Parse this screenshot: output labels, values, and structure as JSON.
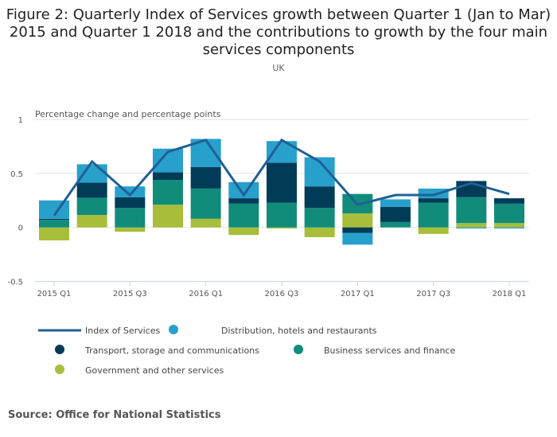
{
  "chart_data": {
    "type": "bar",
    "stacked": true,
    "title": "Figure 2: Quarterly Index of Services growth between Quarter 1 (Jan to Mar) 2015 and Quarter 1 2018 and the contributions to growth by the four main services components",
    "subtitle": "UK",
    "ylabel": "Percentage change and percentage points",
    "ylim": [
      -0.5,
      1
    ],
    "yticks": [
      "1",
      "0.5",
      "0",
      "-0.5"
    ],
    "ytick_values": [
      1,
      0.5,
      0,
      -0.5
    ],
    "grid": true,
    "legend_position": "bottom",
    "categories": [
      "2015 Q1",
      "2015 Q2",
      "2015 Q3",
      "2015 Q4",
      "2016 Q1",
      "2016 Q2",
      "2016 Q3",
      "2016 Q4",
      "2017 Q1",
      "2017 Q2",
      "2017 Q3",
      "2017 Q4",
      "2018 Q1"
    ],
    "xtick_labels": [
      "2015 Q1",
      "",
      "2015 Q3",
      "",
      "2016 Q1",
      "",
      "2016 Q3",
      "",
      "2017 Q1",
      "",
      "2017 Q3",
      "",
      "2018 Q1"
    ],
    "series": [
      {
        "name": "Government and other services",
        "kind": "bar",
        "color": "#a8bd3a",
        "values": [
          -0.12,
          0.115,
          -0.04,
          0.21,
          0.08,
          -0.07,
          -0.01,
          -0.09,
          0.13,
          0.0,
          -0.06,
          0.04,
          0.04
        ]
      },
      {
        "name": "Business services and finance",
        "kind": "bar",
        "color": "#118c7b",
        "values": [
          0.07,
          0.16,
          0.18,
          0.23,
          0.28,
          0.22,
          0.23,
          0.18,
          0.18,
          0.05,
          0.23,
          0.24,
          0.18
        ]
      },
      {
        "name": "Transport, storage and communications",
        "kind": "bar",
        "color": "#003c57",
        "values": [
          0.01,
          0.14,
          0.1,
          0.07,
          0.2,
          0.05,
          0.37,
          0.2,
          -0.05,
          0.14,
          0.04,
          0.15,
          0.05
        ]
      },
      {
        "name": "Distribution, hotels and restaurants",
        "kind": "bar",
        "color": "#27a0cc",
        "values": [
          0.17,
          0.17,
          0.1,
          0.22,
          0.26,
          0.15,
          0.2,
          0.27,
          -0.11,
          0.07,
          0.09,
          -0.01,
          -0.01
        ]
      },
      {
        "name": "Index of Services",
        "kind": "line",
        "color": "#206095",
        "values": [
          0.11,
          0.61,
          0.3,
          0.7,
          0.81,
          0.3,
          0.81,
          0.61,
          0.21,
          0.3,
          0.3,
          0.41,
          0.31
        ]
      }
    ],
    "legend_order": [
      "Index of Services",
      "Distribution, hotels and restaurants",
      "Transport, storage and communications",
      "Business services and finance",
      "Government and other services"
    ]
  },
  "source": "Source: Office for National Statistics"
}
